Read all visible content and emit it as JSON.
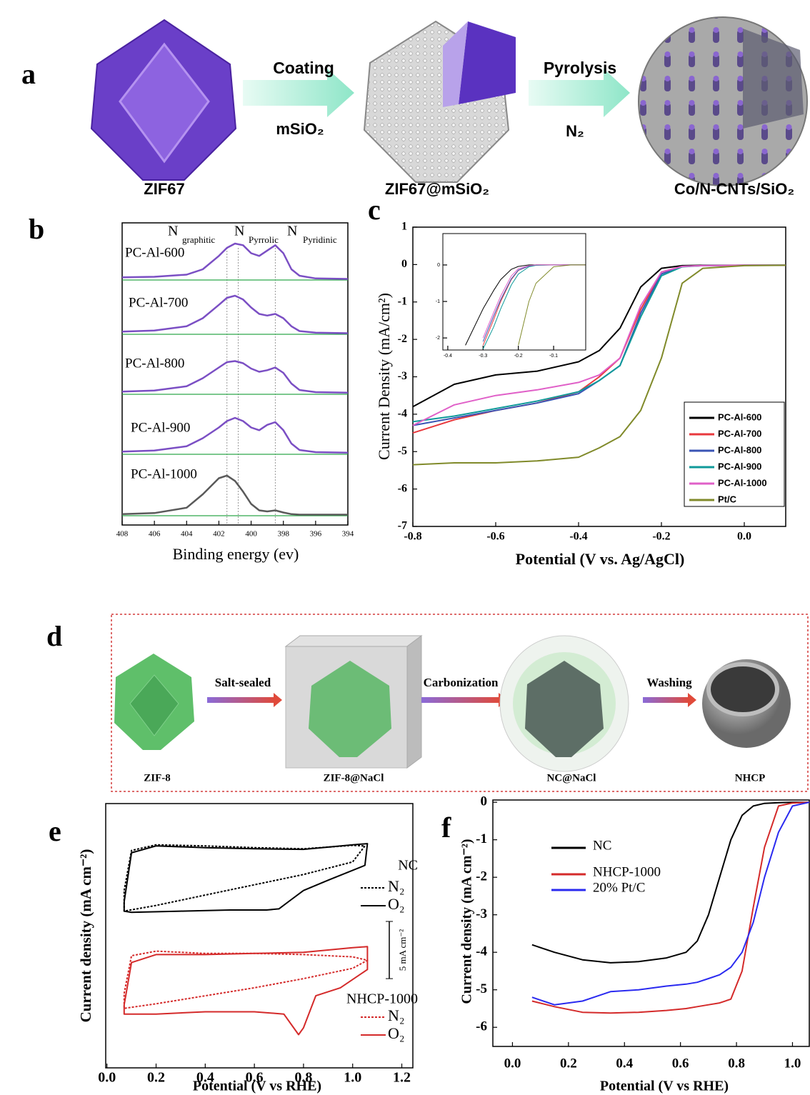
{
  "diagram_a": {
    "label": "a",
    "steps": [
      {
        "above": "Coating",
        "below": "mSiO₂"
      },
      {
        "above": "Pyrolysis",
        "below": "N₂"
      }
    ],
    "items": [
      "ZIF67",
      "ZIF67@mSiO₂",
      "Co/N-CNTs/SiO₂"
    ]
  },
  "diagram_d": {
    "label": "d",
    "steps": [
      "Salt-sealed",
      "Carbonization",
      "Washing"
    ],
    "items": [
      "ZIF-8",
      "ZIF-8@NaCl",
      "NC@NaCl",
      "NHCP"
    ]
  },
  "chart_data": [
    {
      "type": "line",
      "panel_label": "b",
      "xlabel": "Binding energy (ev)",
      "xlim": [
        408,
        394
      ],
      "xticks": [
        408,
        406,
        404,
        402,
        400,
        398,
        396,
        394
      ],
      "x": [
        408,
        406,
        404,
        403,
        402,
        401.5,
        401,
        400.5,
        400,
        399.5,
        399,
        398.5,
        398,
        397.5,
        397,
        396,
        394
      ],
      "series": [
        {
          "name": "PC-Al-600",
          "color": "#7b4fc4",
          "values": [
            0.05,
            0.06,
            0.1,
            0.2,
            0.45,
            0.6,
            0.68,
            0.65,
            0.5,
            0.45,
            0.55,
            0.65,
            0.5,
            0.2,
            0.08,
            0.03,
            0.02
          ]
        },
        {
          "name": "PC-Al-700",
          "color": "#7b4fc4",
          "values": [
            0.05,
            0.07,
            0.15,
            0.3,
            0.55,
            0.68,
            0.72,
            0.65,
            0.5,
            0.38,
            0.35,
            0.38,
            0.3,
            0.15,
            0.06,
            0.03,
            0.02
          ]
        },
        {
          "name": "PC-Al-800",
          "color": "#7b4fc4",
          "values": [
            0.05,
            0.07,
            0.15,
            0.3,
            0.5,
            0.6,
            0.62,
            0.58,
            0.48,
            0.42,
            0.45,
            0.5,
            0.4,
            0.2,
            0.08,
            0.04,
            0.03
          ]
        },
        {
          "name": "PC-Al-900",
          "color": "#7b4fc4",
          "values": [
            0.05,
            0.07,
            0.15,
            0.3,
            0.5,
            0.62,
            0.68,
            0.62,
            0.5,
            0.45,
            0.55,
            0.6,
            0.45,
            0.2,
            0.08,
            0.04,
            0.03
          ]
        },
        {
          "name": "PC-Al-1000",
          "color": "#5a5a5a",
          "values": [
            0.03,
            0.05,
            0.15,
            0.4,
            0.7,
            0.75,
            0.65,
            0.45,
            0.22,
            0.1,
            0.08,
            0.1,
            0.06,
            0.03,
            0.02,
            0.02,
            0.02
          ]
        }
      ],
      "reference_lines": [
        401.5,
        400.8,
        398.5
      ],
      "peak_labels": [
        {
          "text": "N",
          "sub": "graphitic"
        },
        {
          "text": "N",
          "sub": "Pyrrolic"
        },
        {
          "text": "N",
          "sub": "Pyridinic"
        }
      ]
    },
    {
      "type": "line",
      "panel_label": "c",
      "xlabel": "Potential (V vs. Ag/AgCl)",
      "ylabel": "Current Density (mA/cm²)",
      "xlim": [
        -0.8,
        0.1
      ],
      "ylim": [
        -7,
        1
      ],
      "xticks": [
        -0.8,
        -0.6,
        -0.4,
        -0.2,
        {
          "value": 0,
          "label": "0.0"
        }
      ],
      "yticks": [
        1,
        0,
        -1,
        -2,
        -3,
        -4,
        -5,
        -6,
        -7
      ],
      "legend": "lower right",
      "x": [
        -0.8,
        -0.7,
        -0.6,
        -0.5,
        -0.4,
        -0.35,
        -0.3,
        -0.25,
        -0.2,
        -0.15,
        -0.1,
        0,
        0.1
      ],
      "series": [
        {
          "name": "PC-Al-600",
          "color": "#000000",
          "values": [
            -3.8,
            -3.2,
            -2.95,
            -2.85,
            -2.6,
            -2.3,
            -1.7,
            -0.6,
            -0.1,
            -0.03,
            -0.02,
            -0.02,
            -0.02
          ]
        },
        {
          "name": "PC-Al-700",
          "color": "#e8383d",
          "values": [
            -4.5,
            -4.15,
            -3.9,
            -3.7,
            -3.4,
            -3.0,
            -2.5,
            -1.2,
            -0.2,
            -0.05,
            -0.03,
            -0.02,
            -0.02
          ]
        },
        {
          "name": "PC-Al-800",
          "color": "#3a55b4",
          "values": [
            -4.3,
            -4.1,
            -3.9,
            -3.7,
            -3.45,
            -3.1,
            -2.7,
            -1.3,
            -0.25,
            -0.05,
            -0.03,
            -0.02,
            -0.02
          ]
        },
        {
          "name": "PC-Al-900",
          "color": "#0f9a9a",
          "values": [
            -4.2,
            -4.05,
            -3.85,
            -3.65,
            -3.4,
            -3.1,
            -2.7,
            -1.4,
            -0.3,
            -0.06,
            -0.03,
            -0.02,
            -0.02
          ]
        },
        {
          "name": "PC-Al-1000",
          "color": "#e060c8",
          "values": [
            -4.3,
            -3.75,
            -3.5,
            -3.35,
            -3.15,
            -2.95,
            -2.5,
            -1.1,
            -0.2,
            -0.05,
            -0.03,
            -0.02,
            -0.02
          ]
        },
        {
          "name": "Pt/C",
          "color": "#808a2a",
          "values": [
            -5.35,
            -5.3,
            -5.3,
            -5.25,
            -5.15,
            -4.9,
            -4.6,
            -3.9,
            -2.5,
            -0.5,
            -0.1,
            -0.03,
            -0.02
          ]
        }
      ]
    },
    {
      "type": "line",
      "xlim": [
        -0.414,
        -0.009
      ],
      "ylim": [
        -2.33,
        0.86
      ],
      "xticks": [
        -0.4,
        -0.3,
        -0.2,
        -0.1
      ],
      "yticks": [
        0,
        -1,
        -2
      ],
      "x": [
        -0.4,
        -0.35,
        -0.3,
        -0.27,
        -0.25,
        -0.22,
        -0.2,
        -0.17,
        -0.15,
        -0.1,
        -0.05,
        -0.01
      ],
      "series": [
        {
          "color": "#000000",
          "values": [
            null,
            -2.2,
            -1.2,
            -0.7,
            -0.4,
            -0.12,
            -0.04,
            0,
            0,
            0,
            0,
            0
          ]
        },
        {
          "color": "#e8383d",
          "values": [
            null,
            null,
            -2.2,
            -1.5,
            -1.0,
            -0.4,
            -0.15,
            -0.03,
            0,
            0,
            0,
            0
          ]
        },
        {
          "color": "#3a55b4",
          "values": [
            null,
            null,
            -2.1,
            -1.4,
            -0.95,
            -0.38,
            -0.14,
            -0.03,
            0,
            0,
            0,
            0
          ]
        },
        {
          "color": "#0f9a9a",
          "values": [
            null,
            null,
            -2.3,
            -1.7,
            -1.2,
            -0.55,
            -0.25,
            -0.05,
            -0.01,
            0,
            0,
            0
          ]
        },
        {
          "color": "#e060c8",
          "values": [
            null,
            null,
            -2.0,
            -1.3,
            -0.85,
            -0.3,
            -0.1,
            -0.02,
            0,
            0,
            0,
            0
          ]
        },
        {
          "color": "#808a2a",
          "values": [
            null,
            null,
            null,
            null,
            null,
            null,
            -2.2,
            -1.0,
            -0.5,
            -0.05,
            0,
            0
          ]
        }
      ]
    },
    {
      "type": "line",
      "panel_label": "e",
      "xlabel": "Potential (V vs RHE)",
      "ylabel": "Current density (mA cm⁻²)",
      "xlim": [
        -0.005,
        1.245
      ],
      "ylim": [
        -21,
        2.1
      ],
      "xticks": [
        {
          "value": 0,
          "label": "0.0"
        },
        {
          "value": 0.2,
          "label": "0.2"
        },
        {
          "value": 0.4,
          "label": "0.4"
        },
        {
          "value": 0.6,
          "label": "0.6"
        },
        {
          "value": 0.8,
          "label": "0.8"
        },
        {
          "value": 1,
          "label": "1.0"
        },
        {
          "value": 1.2,
          "label": "1.2"
        }
      ],
      "scale_bar": {
        "value": 5,
        "label": "5 mA cm⁻²"
      },
      "series_groups": [
        {
          "name": "NC",
          "series": [
            {
              "name": "N₂",
              "color": "#000000",
              "dashed": true,
              "x": [
                0.07,
                0.1,
                0.2,
                0.4,
                0.6,
                0.8,
                1.0,
                1.05,
                1.0,
                0.8,
                0.6,
                0.4,
                0.2,
                0.07,
                0.07
              ],
              "values": [
                -5.5,
                -2.0,
                -1.5,
                -1.6,
                -1.75,
                -1.85,
                -1.55,
                -1.6,
                -3.0,
                -4.1,
                -5.0,
                -5.9,
                -6.8,
                -7.3,
                -5.5
              ]
            },
            {
              "name": "O₂",
              "color": "#000000",
              "dashed": false,
              "x": [
                0.07,
                0.1,
                0.2,
                0.4,
                0.6,
                0.8,
                1.0,
                1.06,
                1.05,
                0.9,
                0.8,
                0.75,
                0.7,
                0.65,
                0.5,
                0.3,
                0.1,
                0.07,
                0.07
              ],
              "values": [
                -6.5,
                -2.2,
                -1.6,
                -1.75,
                -1.85,
                -1.9,
                -1.5,
                -1.4,
                -3.3,
                -4.6,
                -5.5,
                -6.3,
                -7.1,
                -7.2,
                -7.2,
                -7.3,
                -7.4,
                -7.3,
                -6.5
              ]
            }
          ]
        },
        {
          "name": "NHCP-1000",
          "series": [
            {
              "name": "N₂",
              "color": "#d42a2a",
              "dashed": true,
              "x": [
                0.07,
                0.1,
                0.2,
                0.4,
                0.6,
                0.8,
                1.0,
                1.06,
                1.0,
                0.8,
                0.6,
                0.4,
                0.2,
                0.07,
                0.07
              ],
              "values": [
                -14.5,
                -11.2,
                -10.8,
                -11.0,
                -11.0,
                -11.1,
                -11.3,
                -11.6,
                -12.3,
                -13.2,
                -14.0,
                -14.7,
                -15.4,
                -15.8,
                -14.5
              ]
            },
            {
              "name": "O₂",
              "color": "#d42a2a",
              "dashed": false,
              "x": [
                0.07,
                0.1,
                0.2,
                0.4,
                0.6,
                0.8,
                1.0,
                1.06,
                1.06,
                0.95,
                0.85,
                0.8,
                0.78,
                0.72,
                0.6,
                0.4,
                0.2,
                0.07,
                0.07
              ],
              "values": [
                -15.5,
                -11.8,
                -11.1,
                -11.1,
                -11.0,
                -10.9,
                -10.5,
                -10.4,
                -12.4,
                -14.0,
                -14.7,
                -17.5,
                -18.1,
                -16.3,
                -16.1,
                -16.1,
                -16.3,
                -16.3,
                -15.5
              ]
            }
          ]
        }
      ]
    },
    {
      "type": "line",
      "panel_label": "f",
      "xlabel": "Potential (V vs RHE)",
      "ylabel": "Current density (mA cm⁻²)",
      "xlim": [
        -0.07,
        1.06
      ],
      "ylim": [
        -6.51,
        0.06
      ],
      "xticks": [
        {
          "value": 0,
          "label": "0.0"
        },
        {
          "value": 0.2,
          "label": "0.2"
        },
        {
          "value": 0.4,
          "label": "0.4"
        },
        {
          "value": 0.6,
          "label": "0.6"
        },
        {
          "value": 0.8,
          "label": "0.8"
        },
        {
          "value": 1,
          "label": "1.0"
        }
      ],
      "yticks": [
        0,
        -1,
        -2,
        -3,
        -4,
        -5,
        -6
      ],
      "legend": "upper left",
      "x": [
        0.07,
        0.15,
        0.25,
        0.35,
        0.45,
        0.55,
        0.62,
        0.66,
        0.7,
        0.74,
        0.78,
        0.82,
        0.86,
        0.9,
        0.95,
        1.0,
        1.06
      ],
      "series": [
        {
          "name": "NC",
          "color": "#000000",
          "values": [
            -3.8,
            -4.0,
            -4.2,
            -4.28,
            -4.25,
            -4.15,
            -4.0,
            -3.7,
            -3.0,
            -2.0,
            -1.0,
            -0.35,
            -0.1,
            -0.03,
            -0.01,
            0,
            0
          ]
        },
        {
          "name": "NHCP-1000",
          "color": "#d42a2a",
          "values": [
            -5.3,
            -5.45,
            -5.6,
            -5.62,
            -5.6,
            -5.55,
            -5.5,
            -5.45,
            -5.4,
            -5.35,
            -5.25,
            -4.5,
            -2.8,
            -1.2,
            -0.1,
            -0.02,
            0
          ]
        },
        {
          "name": "20% Pt/C",
          "color": "#2a2af0",
          "values": [
            -5.2,
            -5.4,
            -5.3,
            -5.05,
            -5.0,
            -4.9,
            -4.85,
            -4.8,
            -4.7,
            -4.6,
            -4.4,
            -4.0,
            -3.2,
            -2.0,
            -0.8,
            -0.1,
            0
          ]
        }
      ]
    }
  ]
}
